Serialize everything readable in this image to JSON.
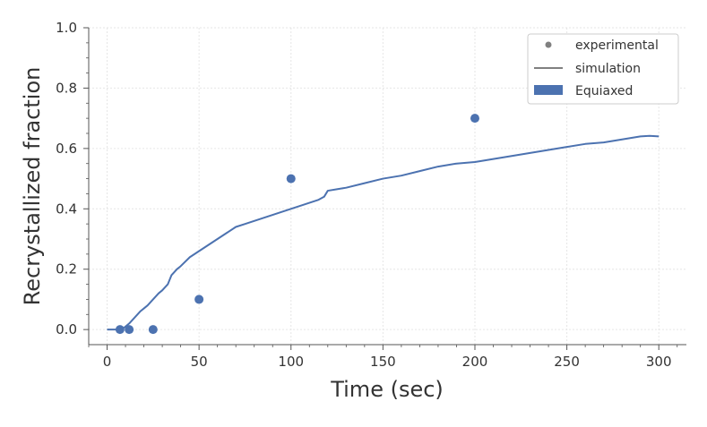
{
  "chart_data": {
    "type": "scatter",
    "title": "",
    "xlabel": "Time (sec)",
    "ylabel": "Recrystallized fraction",
    "xlim": [
      -10,
      315
    ],
    "ylim": [
      -0.05,
      1.0
    ],
    "xticks": [
      0,
      50,
      100,
      150,
      200,
      250,
      300
    ],
    "yticks": [
      0.0,
      0.2,
      0.4,
      0.6,
      0.8,
      1.0
    ],
    "xtick_labels": [
      "0",
      "50",
      "100",
      "150",
      "200",
      "250",
      "300"
    ],
    "ytick_labels": [
      "0.0",
      "0.2",
      "0.4",
      "0.6",
      "0.8",
      "1.0"
    ],
    "grid": true,
    "legend_position": "top-right",
    "legend": [
      {
        "label": "experimental",
        "kind": "marker"
      },
      {
        "label": "simulation",
        "kind": "line"
      },
      {
        "label": "Equiaxed",
        "kind": "patch"
      }
    ],
    "colors": {
      "series": "#4c72b0",
      "legend_gray": "#808080",
      "axis": "#555555",
      "grid": "#e6e6e6"
    },
    "series": [
      {
        "name": "experimental",
        "type": "scatter",
        "x": [
          7,
          12,
          25,
          50,
          100,
          200
        ],
        "y": [
          0.0,
          0.0,
          0.0,
          0.1,
          0.5,
          0.7
        ]
      },
      {
        "name": "simulation",
        "type": "line",
        "x": [
          0,
          5,
          8,
          10,
          12,
          15,
          18,
          20,
          22,
          25,
          28,
          30,
          33,
          35,
          38,
          40,
          45,
          50,
          55,
          60,
          65,
          70,
          75,
          80,
          90,
          100,
          105,
          110,
          115,
          118,
          120,
          125,
          130,
          140,
          150,
          160,
          170,
          180,
          190,
          200,
          210,
          220,
          230,
          240,
          250,
          260,
          270,
          280,
          290,
          295,
          300
        ],
        "y": [
          0.0,
          0.0,
          0.0,
          0.01,
          0.02,
          0.04,
          0.06,
          0.07,
          0.08,
          0.1,
          0.12,
          0.13,
          0.15,
          0.18,
          0.2,
          0.21,
          0.24,
          0.26,
          0.28,
          0.3,
          0.32,
          0.34,
          0.35,
          0.36,
          0.38,
          0.4,
          0.41,
          0.42,
          0.43,
          0.44,
          0.46,
          0.465,
          0.47,
          0.485,
          0.5,
          0.51,
          0.525,
          0.54,
          0.55,
          0.555,
          0.565,
          0.575,
          0.585,
          0.595,
          0.605,
          0.615,
          0.62,
          0.63,
          0.64,
          0.642,
          0.64
        ]
      }
    ]
  }
}
